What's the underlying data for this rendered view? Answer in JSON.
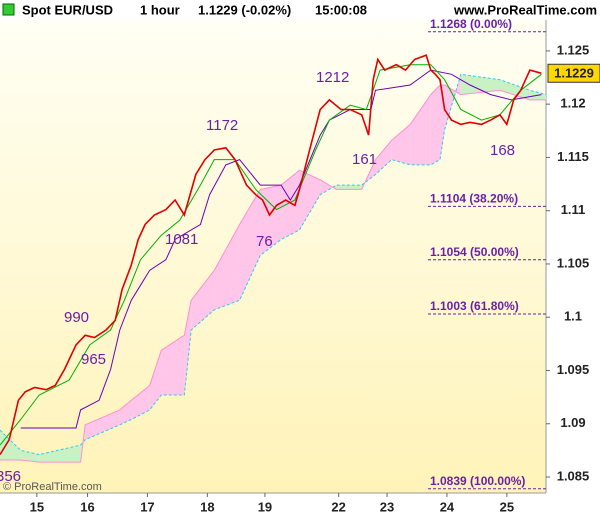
{
  "header": {
    "symbol": "Spot EUR/USD",
    "timeframe": "1 hour",
    "quote": "1.1229 (-0.02%)",
    "time": "15:00:08",
    "site": "www.ProRealTime.com"
  },
  "footer": "© ProRealTime.com",
  "chart_data": {
    "type": "line",
    "xlim": [
      0,
      237
    ],
    "xticks": [
      {
        "value": 16,
        "label": "15"
      },
      {
        "value": 38,
        "label": "16"
      },
      {
        "value": 64,
        "label": "17"
      },
      {
        "value": 90,
        "label": "18"
      },
      {
        "value": 115,
        "label": "19"
      },
      {
        "value": 147,
        "label": "22"
      },
      {
        "value": 168,
        "label": "23"
      },
      {
        "value": 194,
        "label": "24"
      },
      {
        "value": 220,
        "label": "25"
      }
    ],
    "ylim": [
      1.0835,
      1.1279
    ],
    "yticks": [
      1.085,
      1.09,
      1.095,
      1.1,
      1.105,
      1.11,
      1.115,
      1.12,
      1.125
    ],
    "grid": false,
    "cloud_colors": {
      "bullish": "#c9f2c4",
      "bearish": "#ffc6ea"
    },
    "series": [
      {
        "color": "#e00000",
        "x": [
          0,
          4,
          8,
          11,
          15,
          20,
          24,
          28,
          33,
          37,
          41,
          46,
          50,
          53,
          57,
          60,
          63,
          67,
          72,
          76,
          80,
          85,
          89,
          93,
          98,
          102,
          107,
          111,
          114,
          117,
          120,
          124,
          128,
          130,
          135,
          139,
          143,
          148,
          152,
          157,
          160,
          162,
          164,
          167,
          172,
          176,
          180,
          185,
          187,
          189,
          191,
          193,
          196,
          200,
          204,
          209,
          213,
          217,
          220,
          223,
          226,
          230,
          235
        ],
        "values": [
          1.0871,
          1.0885,
          1.0922,
          1.093,
          1.0934,
          1.0932,
          1.0936,
          1.0951,
          1.0974,
          1.0983,
          1.0981,
          1.0988,
          1.0997,
          1.1026,
          1.1049,
          1.1073,
          1.1087,
          1.1096,
          1.1101,
          1.111,
          1.1096,
          1.1134,
          1.1148,
          1.1157,
          1.1159,
          1.1148,
          1.1124,
          1.1115,
          1.111,
          1.1096,
          1.1105,
          1.111,
          1.1105,
          1.112,
          1.1162,
          1.1195,
          1.1204,
          1.1195,
          1.1195,
          1.119,
          1.1171,
          1.1223,
          1.1242,
          1.1232,
          1.1237,
          1.1232,
          1.1242,
          1.1246,
          1.1232,
          1.1228,
          1.1223,
          1.1195,
          1.1185,
          1.1181,
          1.1183,
          1.1181,
          1.1185,
          1.119,
          1.1181,
          1.1204,
          1.1213,
          1.1232,
          1.1229
        ]
      },
      {
        "color": "#00b000",
        "x": [
          0,
          9,
          17,
          30,
          39,
          48,
          54,
          61,
          70,
          78,
          87,
          93,
          102,
          111,
          120,
          128,
          137,
          143,
          152,
          159,
          165,
          178,
          187,
          193,
          200,
          209,
          217,
          226,
          235
        ],
        "values": [
          1.088,
          1.0904,
          1.0927,
          1.0941,
          1.0974,
          1.0988,
          1.1016,
          1.1054,
          1.1077,
          1.1091,
          1.1124,
          1.1148,
          1.1148,
          1.112,
          1.1101,
          1.111,
          1.1157,
          1.1185,
          1.1199,
          1.1195,
          1.1232,
          1.1237,
          1.1237,
          1.1223,
          1.1195,
          1.1185,
          1.119,
          1.1213,
          1.1228
        ]
      },
      {
        "color": "#6a00b8",
        "x": [
          9,
          33,
          35,
          43,
          48,
          52,
          57,
          61,
          65,
          72,
          76,
          83,
          87,
          91,
          98,
          104,
          113,
          122,
          126,
          130,
          139,
          143,
          152,
          161,
          163,
          178,
          187,
          196,
          204,
          213,
          222,
          235
        ],
        "values": [
          1.0896,
          1.0896,
          1.0913,
          1.0922,
          1.0951,
          1.0988,
          1.1016,
          1.103,
          1.1044,
          1.1054,
          1.1073,
          1.1082,
          1.1087,
          1.1115,
          1.1143,
          1.1148,
          1.1124,
          1.1124,
          1.111,
          1.1124,
          1.1171,
          1.1185,
          1.1195,
          1.1195,
          1.1213,
          1.1218,
          1.1232,
          1.1228,
          1.1218,
          1.1209,
          1.1204,
          1.1209
        ]
      },
      {
        "color": "#33c8ee",
        "x": [
          0,
          9,
          17,
          35,
          37,
          52,
          57,
          65,
          70,
          80,
          83,
          93,
          104,
          113,
          122,
          130,
          139,
          146,
          157,
          163,
          170,
          178,
          187,
          191,
          193,
          200,
          217,
          230,
          237
        ],
        "values": [
          1.0894,
          1.0875,
          1.0871,
          1.088,
          1.0885,
          1.0899,
          1.0904,
          1.0913,
          1.0927,
          1.0927,
          1.0988,
          1.1007,
          1.1016,
          1.1058,
          1.1073,
          1.1082,
          1.1115,
          1.1124,
          1.1124,
          1.1134,
          1.1148,
          1.1143,
          1.1143,
          1.1148,
          1.1176,
          1.1228,
          1.1223,
          1.1213,
          1.1209
        ]
      },
      {
        "color": "#ff8fd0",
        "x": [
          0,
          9,
          17,
          35,
          37,
          52,
          57,
          65,
          70,
          80,
          83,
          93,
          104,
          113,
          122,
          130,
          139,
          146,
          157,
          163,
          170,
          178,
          187,
          191,
          193,
          200,
          217,
          230,
          237
        ],
        "values": [
          1.0866,
          1.0866,
          1.0864,
          1.0864,
          1.0899,
          1.0913,
          1.0922,
          1.0936,
          1.0969,
          1.0983,
          1.1016,
          1.1044,
          1.1087,
          1.112,
          1.1124,
          1.1138,
          1.1129,
          1.112,
          1.112,
          1.1148,
          1.1166,
          1.1181,
          1.1209,
          1.1218,
          1.1218,
          1.1209,
          1.1213,
          1.1204,
          1.1204
        ]
      }
    ],
    "fib_color": "#6a1fa8",
    "fib_levels": [
      {
        "value": 1.1268,
        "label": "1.1268 (0.00%)"
      },
      {
        "value": 1.1104,
        "label": "1.1104 (38.20%)"
      },
      {
        "value": 1.1054,
        "label": "1.1054 (50.00%)"
      },
      {
        "value": 1.1003,
        "label": "1.1003 (61.80%)"
      },
      {
        "value": 1.0839,
        "label": "1.0839 (100.00%)"
      }
    ],
    "annotations": [
      "356",
      "990",
      "965",
      "1081",
      "1172",
      "76",
      "1212",
      "161",
      "168"
    ]
  }
}
